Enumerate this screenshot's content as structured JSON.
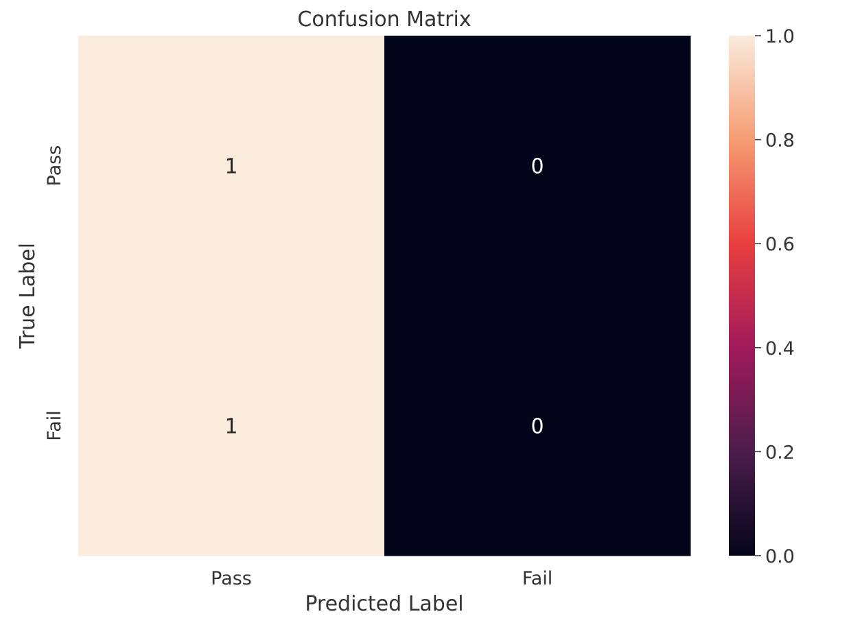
{
  "chart_data": {
    "type": "heatmap",
    "title": "Confusion Matrix",
    "xlabel": "Predicted Label",
    "ylabel": "True Label",
    "x_categories": [
      "Pass",
      "Fail"
    ],
    "y_categories": [
      "Pass",
      "Fail"
    ],
    "values": [
      [
        1,
        0
      ],
      [
        1,
        0
      ]
    ],
    "annotations": [
      [
        "1",
        "0"
      ],
      [
        "1",
        "0"
      ]
    ],
    "colormap": "rocket",
    "colorbar": {
      "range": [
        0,
        1
      ],
      "ticks": [
        "0.0",
        "0.2",
        "0.4",
        "0.6",
        "0.8",
        "1.0"
      ],
      "stops": [
        "#03051a",
        "#4c1d4b",
        "#a11a5b",
        "#e83f3f",
        "#f69c73",
        "#faebdd"
      ]
    },
    "grid": false,
    "legend": "colorbar-right"
  }
}
